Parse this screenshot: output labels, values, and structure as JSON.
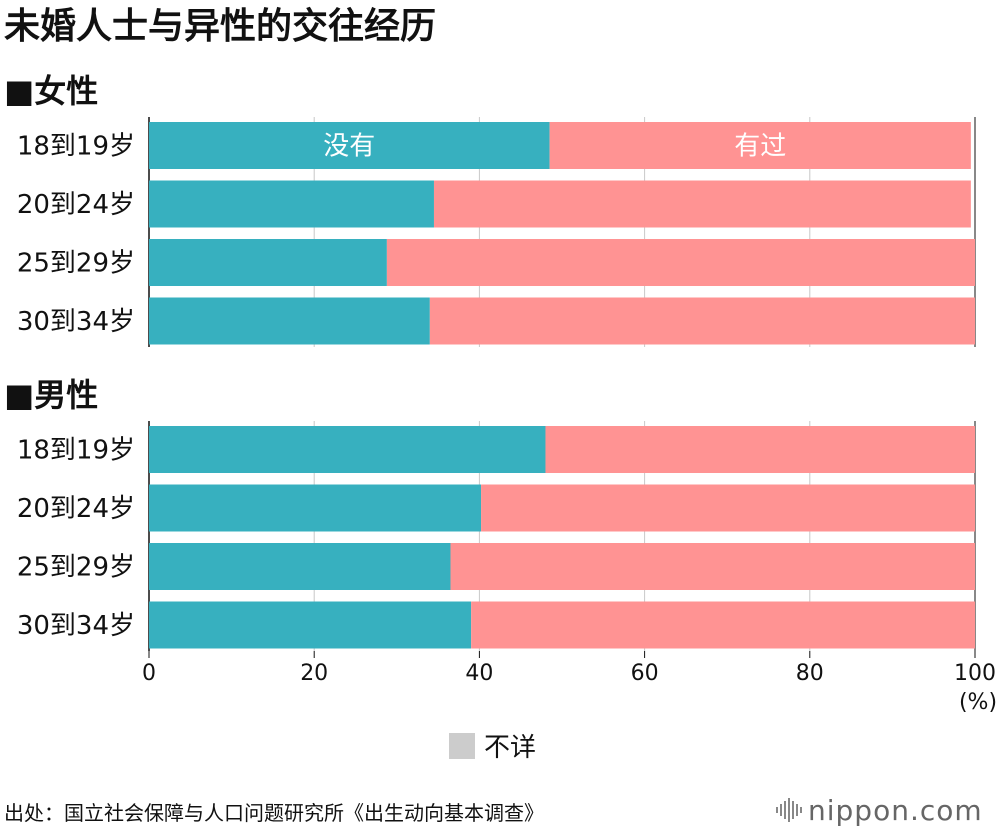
{
  "chart_data": {
    "type": "bar",
    "orientation": "horizontal-stacked",
    "title": "未婚人士与异性的交往经历",
    "unit": "(%)",
    "xlim": [
      0,
      100
    ],
    "xticks": [
      "0",
      "20",
      "40",
      "60",
      "80",
      "100"
    ],
    "grid": true,
    "groups": [
      {
        "label": "■女性",
        "categories": [
          "18到19岁",
          "20到24岁",
          "25到29岁",
          "30到34岁"
        ],
        "series": [
          {
            "name": "没有",
            "color": "#37b0bf",
            "values": [
              48.5,
              34.5,
              28.8,
              34.0
            ]
          },
          {
            "name": "有过",
            "color": "#ff9393",
            "values": [
              51.0,
              65.0,
              71.2,
              66.0
            ]
          }
        ]
      },
      {
        "label": "■男性",
        "categories": [
          "18到19岁",
          "20到24岁",
          "25到29岁",
          "30到34岁"
        ],
        "series": [
          {
            "name": "没有",
            "color": "#37b0bf",
            "values": [
              48.0,
              40.2,
              36.5,
              39.0
            ]
          },
          {
            "name": "有过",
            "color": "#ff9393",
            "values": [
              52.0,
              59.8,
              63.5,
              61.0
            ]
          }
        ]
      }
    ],
    "legend": {
      "label": "不详",
      "color": "#cccccc",
      "placement": "bottom-center"
    }
  },
  "source": "出处：国立社会保障与人口问题研究所《出生动向基本调查》",
  "brand": "nippon.com"
}
